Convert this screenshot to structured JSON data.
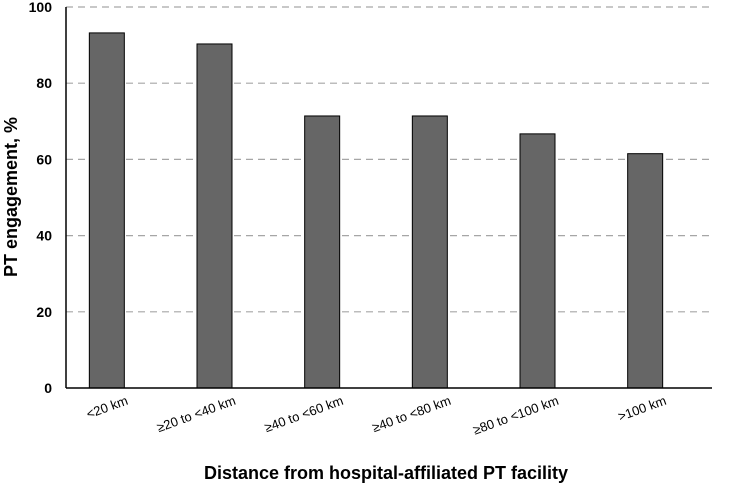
{
  "chart_data": {
    "type": "bar",
    "title": "",
    "xlabel": "Distance from hospital-affiliated PT facility",
    "ylabel": "PT engagement, %",
    "categories": [
      "<20 km",
      "≥20  to <40 km",
      "≥40  to <60 km",
      "≥40 to <80 km",
      "≥80 to <100 km",
      ">100 km"
    ],
    "values": [
      93.2,
      90.3,
      71.4,
      71.4,
      66.7,
      61.5
    ],
    "ylim": [
      0,
      100
    ],
    "yticks": [
      0,
      20,
      40,
      60,
      80,
      100
    ],
    "grid": true,
    "bar_color": "#666666",
    "bar_edge_color": "#000000",
    "grid_color": "#a6a6a6"
  }
}
